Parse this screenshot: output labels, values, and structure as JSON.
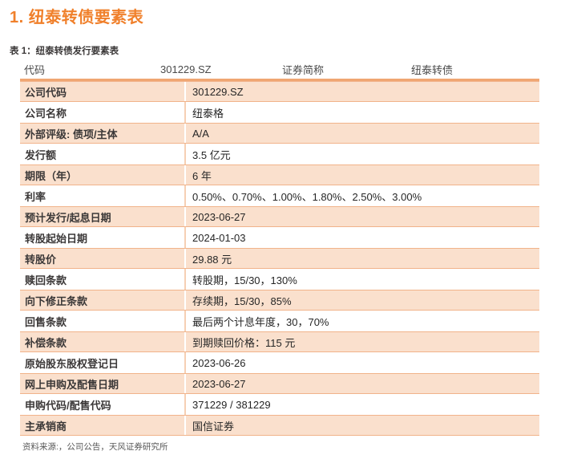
{
  "page": {
    "title": "1. 纽泰转债要素表",
    "caption": "表 1：纽泰转债发行要素表",
    "source_note": "资料来源:，公司公告，天风证券研究所"
  },
  "colors": {
    "accent_orange": "#F0802B",
    "row_fill_peach": "#FAE0CD",
    "row_border": "#F1B38A",
    "header_rule": "#F0A672"
  },
  "table": {
    "header": {
      "code_label": "代码",
      "code_value": "301229.SZ",
      "abbr_label": "证券简称",
      "abbr_value": "纽泰转债"
    },
    "rows": [
      {
        "label": "公司代码",
        "value": "301229.SZ"
      },
      {
        "label": "公司名称",
        "value": "纽泰格"
      },
      {
        "label": "外部评级: 债项/主体",
        "value": "A/A"
      },
      {
        "label": "发行额",
        "value": "3.5 亿元"
      },
      {
        "label": "期限（年）",
        "value": "6 年"
      },
      {
        "label": "利率",
        "value": "0.50%、0.70%、1.00%、1.80%、2.50%、3.00%"
      },
      {
        "label": "预计发行/起息日期",
        "value": "2023-06-27"
      },
      {
        "label": "转股起始日期",
        "value": "2024-01-03"
      },
      {
        "label": "转股价",
        "value": "29.88 元"
      },
      {
        "label": "赎回条款",
        "value": "转股期，15/30，130%"
      },
      {
        "label": "向下修正条款",
        "value": "存续期，15/30，85%"
      },
      {
        "label": "回售条款",
        "value": "最后两个计息年度，30，70%"
      },
      {
        "label": "补偿条款",
        "value": "到期赎回价格：115 元"
      },
      {
        "label": "原始股东股权登记日",
        "value": "2023-06-26"
      },
      {
        "label": "网上申购及配售日期",
        "value": "2023-06-27"
      },
      {
        "label": "申购代码/配售代码",
        "value": "371229 / 381229"
      },
      {
        "label": "主承销商",
        "value": "国信证券"
      }
    ]
  }
}
